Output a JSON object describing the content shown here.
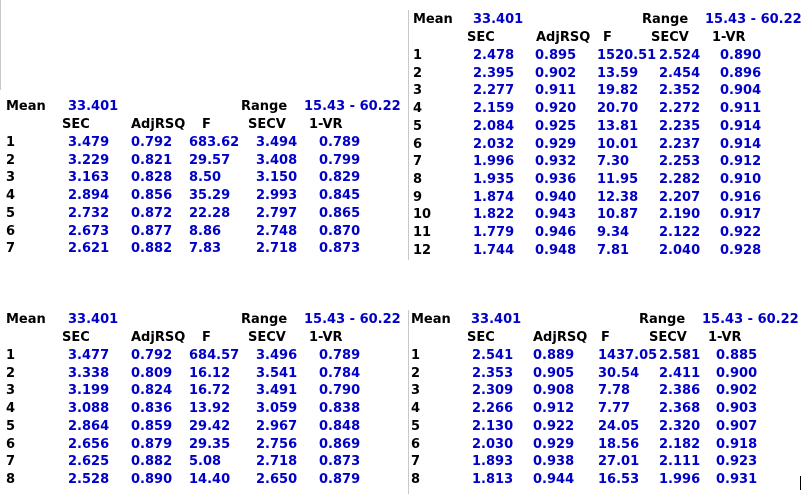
{
  "panels": [
    {
      "mean_label": "Mean",
      "mean_value": "33.401",
      "range_label": "Range",
      "range_value": "15.43 - 60.22",
      "headers": [
        "SEC",
        "AdjRSQ",
        "F",
        "SECV",
        "1-VR"
      ],
      "rows": [
        [
          "1",
          "3.479",
          "0.792",
          "683.62",
          "3.494",
          "0.789"
        ],
        [
          "2",
          "3.229",
          "0.821",
          "29.57",
          "3.408",
          "0.799"
        ],
        [
          "3",
          "3.163",
          "0.828",
          "8.50",
          "3.150",
          "0.829"
        ],
        [
          "4",
          "2.894",
          "0.856",
          "35.29",
          "2.993",
          "0.845"
        ],
        [
          "5",
          "2.732",
          "0.872",
          "22.28",
          "2.797",
          "0.865"
        ],
        [
          "6",
          "2.673",
          "0.877",
          "8.86",
          "2.748",
          "0.870"
        ],
        [
          "7",
          "2.621",
          "0.882",
          "7.83",
          "2.718",
          "0.873"
        ]
      ]
    },
    {
      "mean_label": "Mean",
      "mean_value": "33.401",
      "range_label": "Range",
      "range_value": "15.43 - 60.22",
      "headers": [
        "SEC",
        "AdjRSQ",
        "F",
        "SECV",
        "1-VR"
      ],
      "rows": [
        [
          "1",
          "2.478",
          "0.895",
          "1520.51",
          "2.524",
          "0.890"
        ],
        [
          "2",
          "2.395",
          "0.902",
          "13.59",
          "2.454",
          "0.896"
        ],
        [
          "3",
          "2.277",
          "0.911",
          "19.82",
          "2.352",
          "0.904"
        ],
        [
          "4",
          "2.159",
          "0.920",
          "20.70",
          "2.272",
          "0.911"
        ],
        [
          "5",
          "2.084",
          "0.925",
          "13.81",
          "2.235",
          "0.914"
        ],
        [
          "6",
          "2.032",
          "0.929",
          "10.01",
          "2.237",
          "0.914"
        ],
        [
          "7",
          "1.996",
          "0.932",
          "7.30",
          "2.253",
          "0.912"
        ],
        [
          "8",
          "1.935",
          "0.936",
          "11.95",
          "2.282",
          "0.910"
        ],
        [
          "9",
          "1.874",
          "0.940",
          "12.38",
          "2.207",
          "0.916"
        ],
        [
          "10",
          "1.822",
          "0.943",
          "10.87",
          "2.190",
          "0.917"
        ],
        [
          "11",
          "1.779",
          "0.946",
          "9.34",
          "2.122",
          "0.922"
        ],
        [
          "12",
          "1.744",
          "0.948",
          "7.81",
          "2.040",
          "0.928"
        ]
      ]
    },
    {
      "mean_label": "Mean",
      "mean_value": "33.401",
      "range_label": "Range",
      "range_value": "15.43 - 60.22",
      "headers": [
        "SEC",
        "AdjRSQ",
        "F",
        "SECV",
        "1-VR"
      ],
      "rows": [
        [
          "1",
          "3.477",
          "0.792",
          "684.57",
          "3.496",
          "0.789"
        ],
        [
          "2",
          "3.338",
          "0.809",
          "16.12",
          "3.541",
          "0.784"
        ],
        [
          "3",
          "3.199",
          "0.824",
          "16.72",
          "3.491",
          "0.790"
        ],
        [
          "4",
          "3.088",
          "0.836",
          "13.92",
          "3.059",
          "0.838"
        ],
        [
          "5",
          "2.864",
          "0.859",
          "29.42",
          "2.967",
          "0.848"
        ],
        [
          "6",
          "2.656",
          "0.879",
          "29.35",
          "2.756",
          "0.869"
        ],
        [
          "7",
          "2.625",
          "0.882",
          "5.08",
          "2.718",
          "0.873"
        ],
        [
          "8",
          "2.528",
          "0.890",
          "14.40",
          "2.650",
          "0.879"
        ]
      ]
    },
    {
      "mean_label": "Mean",
      "mean_value": "33.401",
      "range_label": "Range",
      "range_value": "15.43 - 60.22",
      "headers": [
        "SEC",
        "AdjRSQ",
        "F",
        "SECV",
        "1-VR"
      ],
      "rows": [
        [
          "1",
          "2.541",
          "0.889",
          "1437.05",
          "2.581",
          "0.885"
        ],
        [
          "2",
          "2.353",
          "0.905",
          "30.54",
          "2.411",
          "0.900"
        ],
        [
          "3",
          "2.309",
          "0.908",
          "7.78",
          "2.386",
          "0.902"
        ],
        [
          "4",
          "2.266",
          "0.912",
          "7.77",
          "2.368",
          "0.903"
        ],
        [
          "5",
          "2.130",
          "0.922",
          "24.05",
          "2.320",
          "0.907"
        ],
        [
          "6",
          "2.030",
          "0.929",
          "18.56",
          "2.182",
          "0.918"
        ],
        [
          "7",
          "1.893",
          "0.938",
          "27.01",
          "2.111",
          "0.923"
        ],
        [
          "8",
          "1.813",
          "0.944",
          "16.53",
          "1.996",
          "0.931"
        ]
      ]
    }
  ]
}
